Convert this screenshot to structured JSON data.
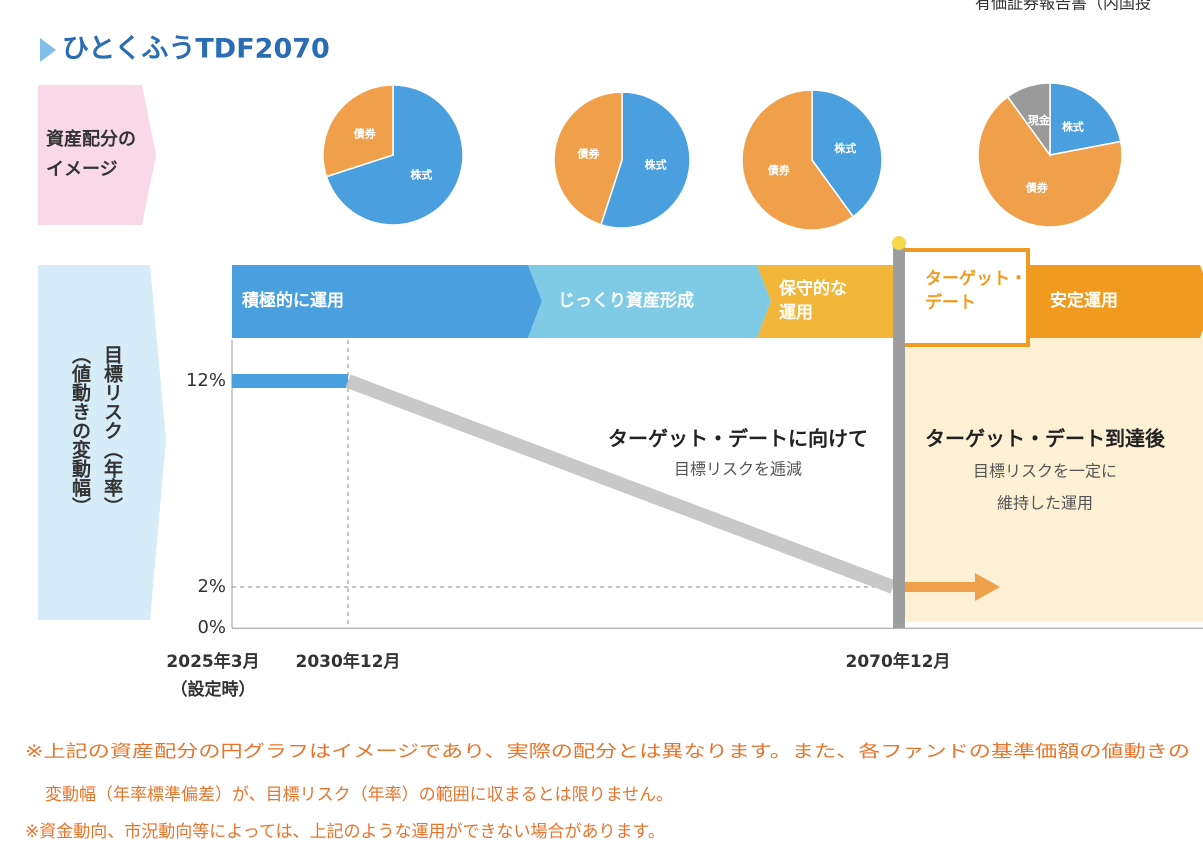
{
  "header": {
    "corner": "有価証券報告書（内国投",
    "title": "ひとくふうTDF2070"
  },
  "allocation": {
    "label_lines": [
      "資産配分の",
      "イメージ"
    ],
    "pies": [
      {
        "slices": [
          {
            "name": "株式",
            "value": 70,
            "color": "#4a9fdf"
          },
          {
            "name": "債券",
            "value": 30,
            "color": "#f0a04b"
          }
        ]
      },
      {
        "slices": [
          {
            "name": "株式",
            "value": 55,
            "color": "#4a9fdf"
          },
          {
            "name": "債券",
            "value": 45,
            "color": "#f0a04b"
          }
        ]
      },
      {
        "slices": [
          {
            "name": "株式",
            "value": 40,
            "color": "#4a9fdf"
          },
          {
            "name": "債券",
            "value": 60,
            "color": "#f0a04b"
          }
        ]
      },
      {
        "slices": [
          {
            "name": "株式",
            "value": 22,
            "color": "#4a9fdf"
          },
          {
            "name": "債券",
            "value": 68,
            "color": "#f0a04b"
          },
          {
            "name": "現金",
            "value": 10,
            "color": "#9a9a9a"
          }
        ]
      }
    ]
  },
  "phases": [
    {
      "lines": [
        "積極的に運用"
      ],
      "color": "#4a9fdf"
    },
    {
      "lines": [
        "じっくり資産形成"
      ],
      "color": "#7fcbe6"
    },
    {
      "lines": [
        "保守的な",
        "運用"
      ],
      "color": "#f2b73a"
    },
    {
      "lines": [
        "ターゲット・",
        "デート"
      ],
      "color": "#ffffff"
    },
    {
      "lines": [
        "安定運用"
      ],
      "color": "#f09a1f"
    }
  ],
  "risk_chart": {
    "axis_label_lines": [
      "目標リスク（年率）",
      "（値動きの変動幅）"
    ],
    "yticks": [
      {
        "value": 0,
        "label": "0%"
      },
      {
        "value": 2,
        "label": "2%"
      },
      {
        "value": 12,
        "label": "12%"
      }
    ],
    "dates": [
      [
        "2025年3月",
        "（設定時）"
      ],
      [
        "2030年12月"
      ],
      [
        "2070年12月"
      ]
    ],
    "risk": [
      12,
      12,
      2
    ],
    "before_lines": [
      "ターゲット・デートに向けて",
      "目標リスクを逓減"
    ],
    "after_lines": [
      "ターゲット・デート到達後",
      "目標リスクを一定に",
      "維持した運用"
    ]
  },
  "notes": [
    [
      "※上記の資産配分の円グラフはイメージであり、実際の配分とは異なります。また、各ファンドの基準価額の値動きの",
      "変動幅（年率標準偏差）が、目標リスク（年率）の範囲に収まるとは限りません。"
    ],
    [
      "※資金動向、市況動向等によっては、上記のような運用ができない場合があります。"
    ]
  ]
}
